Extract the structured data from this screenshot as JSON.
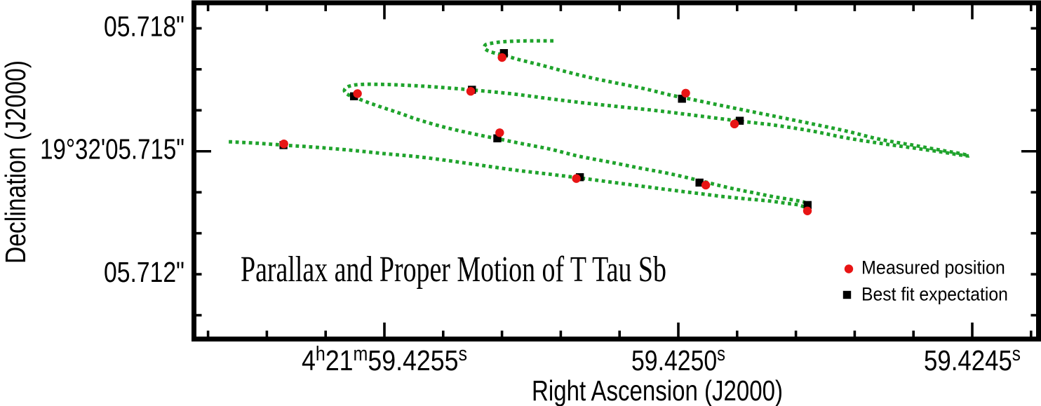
{
  "figure": {
    "background": "#ffffff",
    "frame_color": "#000000"
  },
  "chart_data": {
    "type": "scatter",
    "title": "Parallax and Proper Motion of T Tau Sb",
    "xlabel": "Right Ascension (J2000)",
    "ylabel": "Declination (J2000)",
    "x_axis": {
      "quantity": "right ascension seconds at 4h21m (J2000)",
      "range": [
        59.4258198,
        59.4243914
      ],
      "major_ticks": [
        59.4255,
        59.425,
        59.4245
      ],
      "major_tick_labels": [
        [
          [
            "4",
            0
          ],
          [
            "h",
            1
          ],
          [
            "21",
            0
          ],
          [
            "m",
            1
          ],
          [
            "59.4255",
            0
          ],
          [
            "s",
            1
          ]
        ],
        [
          [
            "59.4250",
            0
          ],
          [
            "s",
            1
          ]
        ],
        [
          [
            "59.4245",
            0
          ],
          [
            "s",
            1
          ]
        ]
      ],
      "minor_step": 0.0001,
      "direction": "RA increases to the left"
    },
    "y_axis": {
      "quantity": "declination arcseconds within 19 deg 32 arcmin (J2000)",
      "range": [
        5.7185629,
        5.710479
      ],
      "labeled_ticks": [
        5.718,
        5.715,
        5.712
      ],
      "tick_labels": [
        "05.718\"",
        "19°32'05.715\"",
        "05.712\""
      ],
      "long_ticks": [
        5.715
      ],
      "minor_step": 0.001
    },
    "series": [
      {
        "name": "Measured position",
        "marker": "circle",
        "color": "#e81414",
        "points": [
          [
            59.4252999,
            5.717288
          ],
          [
            59.4249874,
            5.716419
          ],
          [
            59.4249045,
            5.715666
          ],
          [
            59.4253532,
            5.716464
          ],
          [
            59.4255458,
            5.716407
          ],
          [
            59.4253039,
            5.715453
          ],
          [
            59.4249533,
            5.714175
          ],
          [
            59.4247804,
            5.713545
          ],
          [
            59.4251735,
            5.714335
          ],
          [
            59.425671,
            5.71518
          ]
        ]
      },
      {
        "name": "Best fit expectation",
        "marker": "square",
        "color": "#000000",
        "points": [
          [
            59.4252967,
            5.717396
          ],
          [
            59.4249938,
            5.716282
          ],
          [
            59.4248955,
            5.715745
          ],
          [
            59.4253511,
            5.716501
          ],
          [
            59.4255517,
            5.716342
          ],
          [
            59.4253079,
            5.715316
          ],
          [
            59.424964,
            5.714236
          ],
          [
            59.4247801,
            5.713689
          ],
          [
            59.4251675,
            5.714368
          ],
          [
            59.4256717,
            5.71515
          ]
        ]
      },
      {
        "name": "parallax and proper motion model trajectory",
        "marker": "none",
        "style": "dotted",
        "color": "#1fa32c",
        "points": [
          [
            59.4252124,
            5.717694
          ],
          [
            59.4252446,
            5.717695
          ],
          [
            59.4252768,
            5.717687
          ],
          [
            59.4253019,
            5.717668
          ],
          [
            59.4253174,
            5.717637
          ],
          [
            59.4253282,
            5.717596
          ],
          [
            59.42533,
            5.717536
          ],
          [
            59.425327,
            5.71748
          ],
          [
            59.4253198,
            5.717429
          ],
          [
            59.4253115,
            5.717394
          ],
          [
            59.4252983,
            5.717352
          ],
          [
            59.4252757,
            5.717254
          ],
          [
            59.4252351,
            5.717109
          ],
          [
            59.4251921,
            5.716946
          ],
          [
            59.4251456,
            5.716784
          ],
          [
            59.425099,
            5.716647
          ],
          [
            59.4250537,
            5.716513
          ],
          [
            59.4250107,
            5.716364
          ],
          [
            59.4249726,
            5.716253
          ],
          [
            59.4249248,
            5.716111
          ],
          [
            59.4248747,
            5.715966
          ],
          [
            59.4248198,
            5.715808
          ],
          [
            59.4247697,
            5.715661
          ],
          [
            59.424716,
            5.715499
          ],
          [
            59.4246563,
            5.71529
          ],
          [
            59.4245967,
            5.715139
          ],
          [
            59.4245489,
            5.715016
          ],
          [
            59.4245191,
            5.714941
          ],
          [
            59.4245054,
            5.714888
          ],
          [
            59.4245191,
            5.714907
          ],
          [
            59.4245489,
            5.714975
          ],
          [
            59.4245967,
            5.715074
          ],
          [
            59.4246563,
            5.715194
          ],
          [
            59.424716,
            5.715331
          ],
          [
            59.4247697,
            5.715487
          ],
          [
            59.4248413,
            5.715646
          ],
          [
            59.424895,
            5.715735
          ],
          [
            59.4249726,
            5.715877
          ],
          [
            59.4250346,
            5.715988
          ],
          [
            59.425099,
            5.716086
          ],
          [
            59.4251635,
            5.716185
          ],
          [
            59.4252172,
            5.716279
          ],
          [
            59.4252828,
            5.716402
          ],
          [
            59.4253508,
            5.716496
          ],
          [
            59.4254141,
            5.71657
          ],
          [
            59.4254582,
            5.716607
          ],
          [
            59.4255,
            5.716631
          ],
          [
            59.4255358,
            5.716633
          ],
          [
            59.4255549,
            5.716607
          ],
          [
            59.4255656,
            5.716547
          ],
          [
            59.425568,
            5.716479
          ],
          [
            59.425565,
            5.716411
          ],
          [
            59.4255585,
            5.716359
          ],
          [
            59.4255501,
            5.716317
          ],
          [
            59.4255406,
            5.716262
          ],
          [
            59.4255251,
            5.716176
          ],
          [
            59.425506,
            5.716082
          ],
          [
            59.4254737,
            5.715928
          ],
          [
            59.4254451,
            5.715783
          ],
          [
            59.4254021,
            5.715603
          ],
          [
            59.4253616,
            5.715466
          ],
          [
            59.4253079,
            5.715307
          ],
          [
            59.4252589,
            5.715167
          ],
          [
            59.4252172,
            5.71505
          ],
          [
            59.4251718,
            5.714888
          ],
          [
            59.4251158,
            5.714734
          ],
          [
            59.4250632,
            5.714585
          ],
          [
            59.4250143,
            5.714452
          ],
          [
            59.4249642,
            5.714286
          ],
          [
            59.4249129,
            5.714106
          ],
          [
            59.4248711,
            5.713986
          ],
          [
            59.4248353,
            5.713884
          ],
          [
            59.4248043,
            5.713812
          ],
          [
            59.4247864,
            5.71376
          ],
          [
            59.4247786,
            5.713702
          ],
          [
            59.4247774,
            5.713668
          ],
          [
            59.4247852,
            5.713646
          ],
          [
            59.4247947,
            5.713689
          ],
          [
            59.4248174,
            5.713733
          ],
          [
            59.4248413,
            5.713781
          ],
          [
            59.4248842,
            5.713839
          ],
          [
            59.4249248,
            5.713897
          ],
          [
            59.4249606,
            5.713962
          ],
          [
            59.4250143,
            5.714058
          ],
          [
            59.4250632,
            5.714151
          ],
          [
            59.4251158,
            5.71425
          ],
          [
            59.4251675,
            5.714349
          ],
          [
            59.4252232,
            5.714448
          ],
          [
            59.4252804,
            5.714546
          ],
          [
            59.4253305,
            5.714648
          ],
          [
            59.425389,
            5.714768
          ],
          [
            59.4254439,
            5.714867
          ],
          [
            59.4254976,
            5.714939
          ],
          [
            59.4255573,
            5.715027
          ],
          [
            59.4256169,
            5.715098
          ],
          [
            59.4256718,
            5.715151
          ],
          [
            59.4257184,
            5.715198
          ],
          [
            59.4257649,
            5.715232
          ]
        ]
      }
    ],
    "legend": {
      "position": "lower right",
      "items": [
        {
          "label": "Measured position",
          "marker": "circle",
          "color": "#e81414"
        },
        {
          "label": "Best fit expectation",
          "marker": "square",
          "color": "#000000"
        }
      ]
    }
  }
}
